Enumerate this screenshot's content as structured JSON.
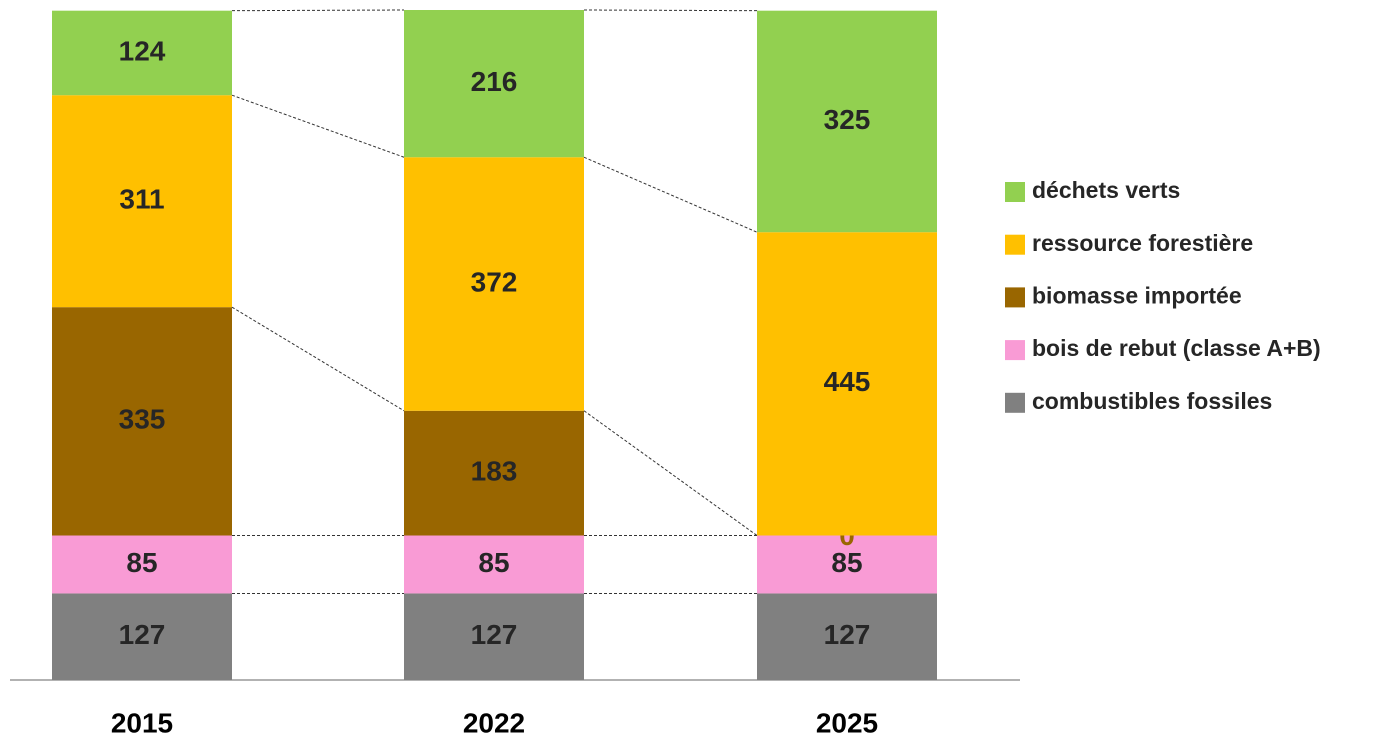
{
  "chart_data": {
    "type": "stacked-bar",
    "categories": [
      "2015",
      "2022",
      "2025"
    ],
    "series": [
      {
        "name": "combustibles fossiles",
        "color": "#808080",
        "values": [
          127,
          127,
          127
        ]
      },
      {
        "name": "bois de rebut (classe A+B)",
        "color": "#f99bd5",
        "values": [
          85,
          85,
          85
        ]
      },
      {
        "name": "biomasse importée",
        "color": "#996600",
        "values": [
          335,
          183,
          0
        ]
      },
      {
        "name": "ressource forestière",
        "color": "#ffc000",
        "values": [
          311,
          372,
          445
        ]
      },
      {
        "name": "déchets verts",
        "color": "#92d050",
        "values": [
          124,
          216,
          325
        ]
      }
    ],
    "legend": "right"
  }
}
